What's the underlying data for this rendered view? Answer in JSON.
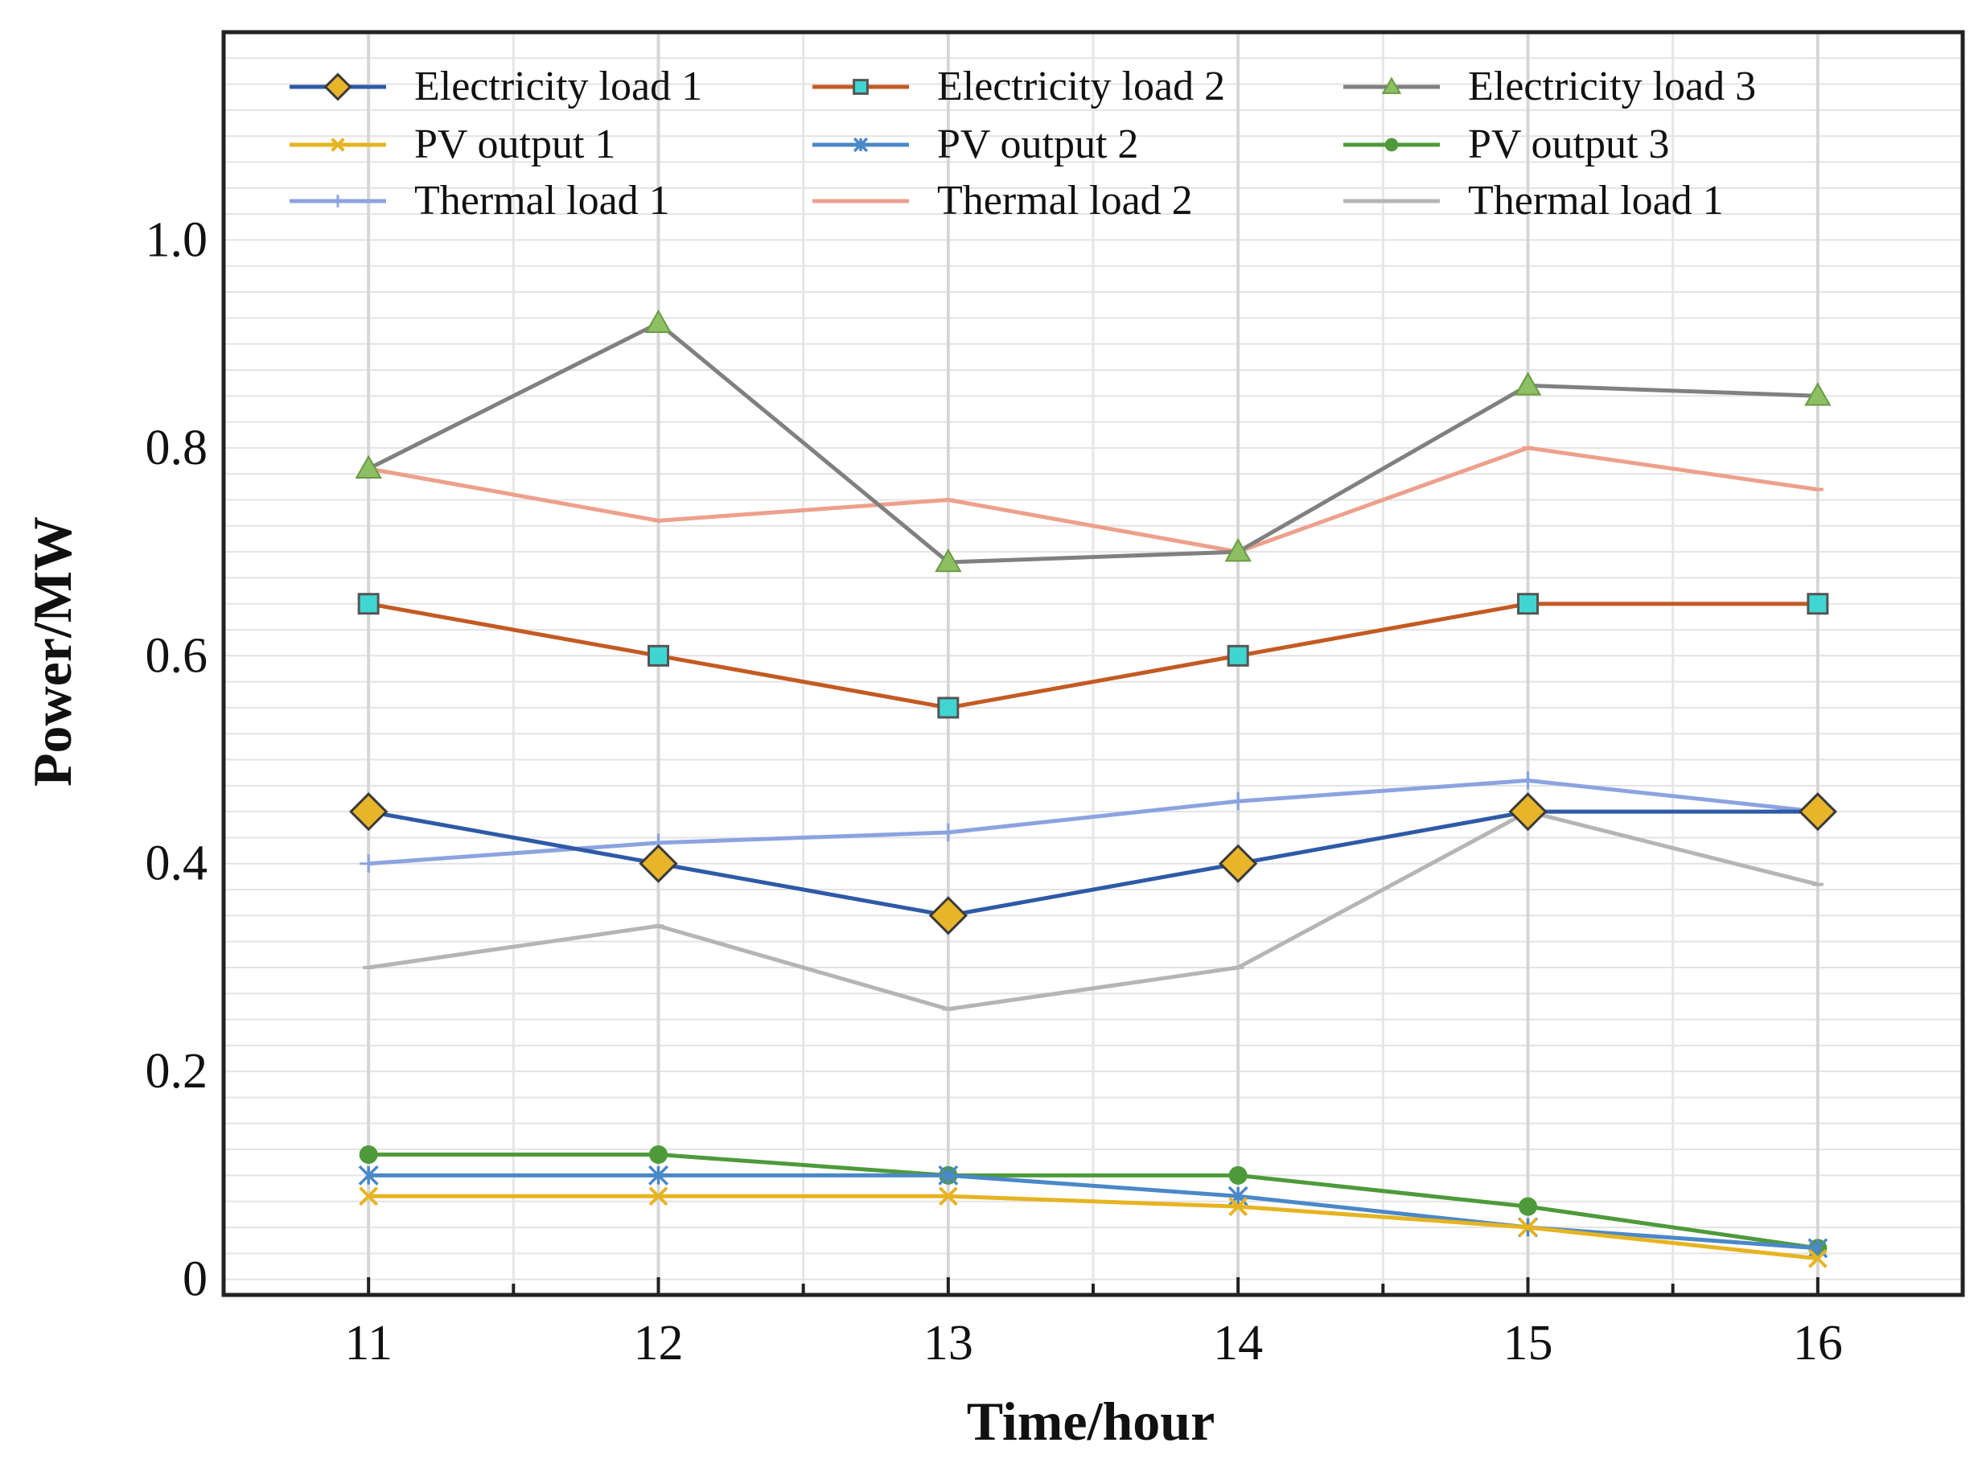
{
  "chart_data": {
    "type": "line",
    "title": "",
    "xlabel": "Time/hour",
    "ylabel": "Power/MW",
    "x": [
      11,
      12,
      13,
      14,
      15,
      16
    ],
    "x_tick_labels": [
      "11",
      "12",
      "13",
      "14",
      "15",
      "16"
    ],
    "xlim": [
      10.5,
      16.5
    ],
    "ylim": [
      -0.015,
      1.2
    ],
    "y_ticks": [
      0,
      0.2,
      0.4,
      0.6,
      0.8,
      1.0
    ],
    "y_tick_labels": [
      "0",
      "0.2",
      "0.4",
      "0.6",
      "0.8",
      "1.0"
    ],
    "grid": true,
    "legend_position": "top",
    "series": [
      {
        "name": "Electricity load 1",
        "color": "#2e5aa7",
        "marker": "diamond",
        "marker_fill": "#e8b52a",
        "values": [
          0.45,
          0.4,
          0.35,
          0.4,
          0.45,
          0.45
        ]
      },
      {
        "name": "Electricity load 2",
        "color": "#c45a22",
        "marker": "square",
        "marker_fill": "#3fd6d2",
        "values": [
          0.65,
          0.6,
          0.55,
          0.6,
          0.65,
          0.65
        ]
      },
      {
        "name": "Electricity load 3",
        "color": "#808080",
        "marker": "triangle",
        "marker_fill": "#8cc063",
        "values": [
          0.78,
          0.92,
          0.69,
          0.7,
          0.86,
          0.85
        ]
      },
      {
        "name": "PV output 1",
        "color": "#e6b422",
        "marker": "x",
        "marker_fill": "#e6b422",
        "values": [
          0.08,
          0.08,
          0.08,
          0.07,
          0.05,
          0.02
        ]
      },
      {
        "name": "PV output 2",
        "color": "#4a88c8",
        "marker": "asterisk",
        "marker_fill": "#4a88c8",
        "values": [
          0.1,
          0.1,
          0.1,
          0.08,
          0.05,
          0.03
        ]
      },
      {
        "name": "PV output 3",
        "color": "#4e9a3a",
        "marker": "circle",
        "marker_fill": "#4e9a3a",
        "values": [
          0.12,
          0.12,
          0.1,
          0.1,
          0.07,
          0.03
        ]
      },
      {
        "name": "Thermal load 1",
        "color": "#8ca3e0",
        "marker": "plus",
        "marker_fill": "#8ca3e0",
        "values": [
          0.4,
          0.42,
          0.43,
          0.46,
          0.48,
          0.45
        ]
      },
      {
        "name": "Thermal load 2",
        "color": "#eda08c",
        "marker": "dash",
        "marker_fill": "#eda08c",
        "values": [
          0.78,
          0.73,
          0.75,
          0.7,
          0.8,
          0.76
        ]
      },
      {
        "name": "Thermal load 1",
        "color": "#b5b5b5",
        "marker": "dash",
        "marker_fill": "#b5b5b5",
        "values": [
          0.3,
          0.34,
          0.26,
          0.3,
          0.45,
          0.38
        ]
      }
    ]
  }
}
